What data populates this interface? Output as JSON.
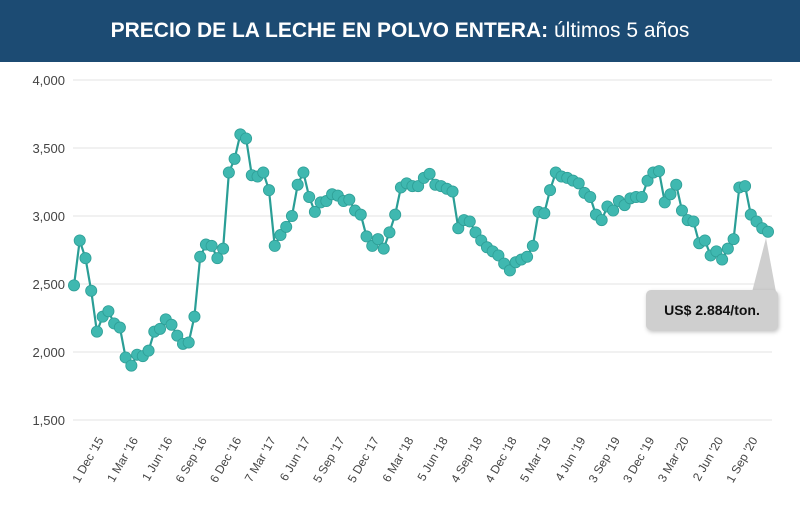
{
  "header": {
    "title_bold": "PRECIO DE LA LECHE EN POLVO ENTERA:",
    "title_rest": " últimos 5 años"
  },
  "callout": {
    "text": "US$ 2.884/ton."
  },
  "colors": {
    "header_bg": "#1c4b73",
    "line": "#2a9e96",
    "marker": "#3fb8b0",
    "grid": "#e3e3e3",
    "callout_bg": "#cfcfcf"
  },
  "chart_data": {
    "type": "line",
    "ylim": [
      1500,
      4000
    ],
    "yticks": [
      1500,
      2000,
      2500,
      3000,
      3500,
      4000
    ],
    "ytick_labels": [
      "1,500",
      "2,000",
      "2,500",
      "3,000",
      "3,500",
      "4,000"
    ],
    "xtick_labels": [
      "1 Dec '15",
      "1 Mar '16",
      "1 Jun '16",
      "6 Sep '16",
      "6 Dec '16",
      "7 Mar '17",
      "6 Jun '17",
      "5 Sep '17",
      "5 Dec '17",
      "6 Mar '18",
      "5 Jun '18",
      "4 Sep '18",
      "4 Dec '18",
      "5 Mar '19",
      "4 Jun '19",
      "3 Sep '19",
      "3 Dec '19",
      "3 Mar '20",
      "2 Jun '20",
      "1 Sep '20"
    ],
    "grid": true,
    "series": [
      {
        "values": [
          2490,
          2820,
          2690,
          2450,
          2150,
          2260,
          2300,
          2210,
          2180,
          1960,
          1900,
          1980,
          1970,
          2010,
          2150,
          2170,
          2240,
          2200,
          2120,
          2060,
          2070,
          2260,
          2700,
          2790,
          2780,
          2690,
          2760,
          3320,
          3420,
          3600,
          3570,
          3300,
          3290,
          3320,
          3190,
          2780,
          2860,
          2920,
          3000,
          3230,
          3320,
          3140,
          3030,
          3100,
          3110,
          3160,
          3150,
          3110,
          3120,
          3040,
          3010,
          2850,
          2780,
          2830,
          2760,
          2880,
          3010,
          3210,
          3240,
          3220,
          3220,
          3280,
          3310,
          3230,
          3220,
          3200,
          3180,
          2910,
          2970,
          2960,
          2880,
          2820,
          2770,
          2740,
          2710,
          2650,
          2600,
          2660,
          2680,
          2700,
          2780,
          3030,
          3020,
          3190,
          3320,
          3290,
          3280,
          3260,
          3240,
          3170,
          3140,
          3010,
          2970,
          3070,
          3040,
          3110,
          3080,
          3130,
          3140,
          3140,
          3260,
          3320,
          3330,
          3100,
          3160,
          3230,
          3040,
          2970,
          2960,
          2800,
          2820,
          2710,
          2740,
          2680,
          2760,
          2830,
          3210,
          3220,
          3010,
          2960,
          2910,
          2884
        ]
      }
    ]
  }
}
